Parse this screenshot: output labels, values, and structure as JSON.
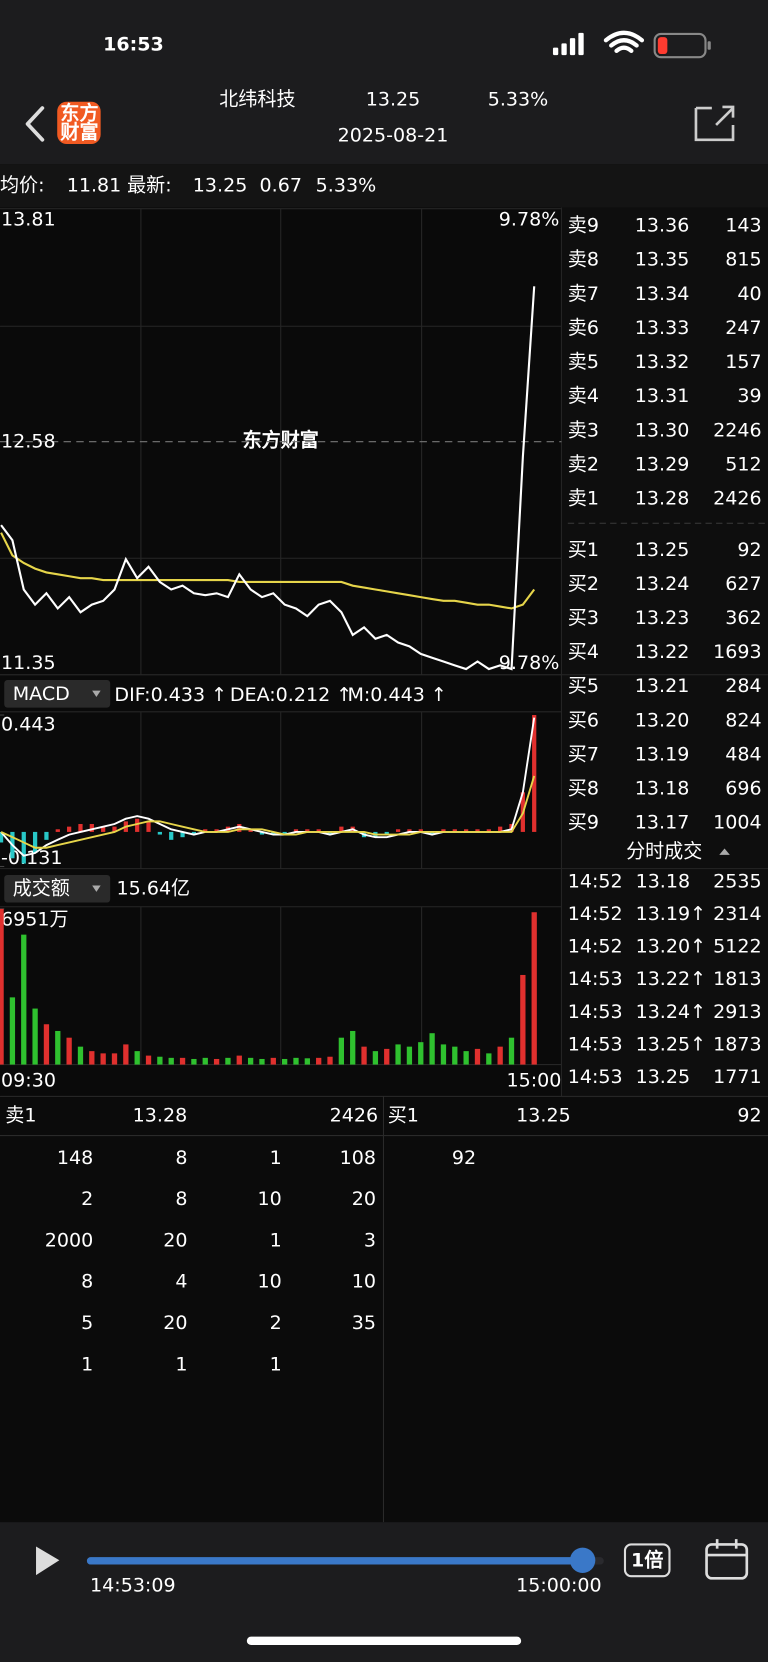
{
  "status_bar": {
    "time": "16:53"
  },
  "header": {
    "logo": [
      "东方",
      "财富"
    ],
    "title": "北纬科技",
    "price": "13.25",
    "change_pct": "5.33%",
    "date": "2025-08-21"
  },
  "quote_bar": {
    "avg_label": "均价:",
    "avg": "11.81",
    "latest_label": "最新:",
    "latest": "13.25",
    "change": "0.67",
    "change_pct": "5.33%"
  },
  "chart_data": [
    {
      "type": "line",
      "watermark": "东方财富",
      "ylim": [
        11.35,
        13.81
      ],
      "yticks": [
        11.35,
        12.58,
        13.81
      ],
      "pct_labels": [
        "9.78%",
        "9.78%"
      ],
      "series": [
        {
          "color": "#ffffff",
          "values": [
            12.14,
            12.06,
            11.8,
            11.72,
            11.78,
            11.7,
            11.76,
            11.68,
            11.72,
            11.74,
            11.8,
            11.96,
            11.86,
            11.92,
            11.84,
            11.8,
            11.82,
            11.78,
            11.77,
            11.78,
            11.76,
            11.88,
            11.8,
            11.76,
            11.78,
            11.72,
            11.7,
            11.66,
            11.72,
            11.74,
            11.68,
            11.56,
            11.6,
            11.54,
            11.56,
            11.52,
            11.5,
            11.46,
            11.44,
            11.42,
            11.4,
            11.38,
            11.42,
            11.38,
            11.4,
            11.38,
            12.5,
            13.4,
            null
          ]
        },
        {
          "color": "#e6d54a",
          "values": [
            12.1,
            11.98,
            11.94,
            11.91,
            11.89,
            11.88,
            11.87,
            11.86,
            11.86,
            11.85,
            11.85,
            11.85,
            11.85,
            11.85,
            11.85,
            11.85,
            11.85,
            11.85,
            11.85,
            11.85,
            11.85,
            11.84,
            11.84,
            11.84,
            11.84,
            11.84,
            11.84,
            11.84,
            11.84,
            11.84,
            11.84,
            11.82,
            11.81,
            11.8,
            11.79,
            11.78,
            11.77,
            11.76,
            11.75,
            11.74,
            11.74,
            11.73,
            11.72,
            11.72,
            11.71,
            11.7,
            11.72,
            11.8,
            null
          ]
        }
      ]
    },
    {
      "type": "macd",
      "indicator": "MACD",
      "ylim": [
        -0.131,
        0.443
      ],
      "yticks": [
        -0.131,
        0.443
      ],
      "up_color": "#e0302e",
      "down_color": "#28c8c8",
      "series": [
        {
          "name": "DIF:0.433 ↑",
          "color": "#ffffff",
          "values": [
            0.0,
            -0.05,
            -0.09,
            -0.08,
            -0.05,
            -0.03,
            -0.01,
            0.0,
            0.01,
            0.02,
            0.03,
            0.05,
            0.06,
            0.05,
            0.03,
            0.01,
            0.0,
            -0.01,
            0.0,
            0.0,
            0.01,
            0.02,
            0.01,
            0.0,
            -0.01,
            -0.01,
            0.0,
            0.0,
            0.0,
            -0.01,
            0.0,
            0.01,
            -0.01,
            -0.02,
            -0.02,
            -0.01,
            0.0,
            0.0,
            -0.01,
            0.0,
            0.0,
            0.0,
            0.0,
            0.0,
            0.0,
            0.01,
            0.15,
            0.433,
            null
          ]
        },
        {
          "name": "DEA:0.212 ↑",
          "color": "#e6d54a",
          "values": [
            0.0,
            -0.02,
            -0.04,
            -0.06,
            -0.06,
            -0.05,
            -0.04,
            -0.03,
            -0.02,
            -0.01,
            0.0,
            0.02,
            0.03,
            0.04,
            0.04,
            0.03,
            0.02,
            0.01,
            0.0,
            0.0,
            0.0,
            0.01,
            0.01,
            0.01,
            0.0,
            -0.01,
            -0.01,
            0.0,
            0.0,
            0.0,
            0.0,
            0.0,
            0.0,
            -0.01,
            -0.01,
            -0.01,
            -0.01,
            0.0,
            0.0,
            0.0,
            0.0,
            0.0,
            0.0,
            0.0,
            0.0,
            0.0,
            0.07,
            0.212,
            null
          ]
        },
        {
          "name": "M:0.443 ↑",
          "color": "#e040e0",
          "bars": true,
          "values": [
            -0.04,
            -0.1,
            -0.12,
            -0.08,
            -0.03,
            0.01,
            0.02,
            0.03,
            0.03,
            0.02,
            0.02,
            0.04,
            0.05,
            0.04,
            -0.01,
            -0.03,
            -0.02,
            -0.01,
            0.01,
            0.01,
            0.02,
            0.03,
            0.01,
            -0.01,
            -0.01,
            -0.01,
            0.01,
            0.01,
            0.01,
            -0.01,
            0.02,
            0.02,
            -0.02,
            -0.02,
            -0.01,
            0.01,
            0.01,
            0.01,
            -0.01,
            0.01,
            0.01,
            0.01,
            0.01,
            0.01,
            0.02,
            0.03,
            0.15,
            0.443,
            null
          ]
        }
      ]
    },
    {
      "type": "bar",
      "indicator": "成交额",
      "total": "15.64亿",
      "ylim": [
        0,
        6951
      ],
      "yticks": [
        {
          "value": 6951,
          "label": "6951万"
        }
      ],
      "x_labels": [
        "09:30",
        "15:00"
      ],
      "up_color": "#e0302e",
      "down_color": "#2fc12f",
      "values": [
        6951,
        3000,
        5800,
        2500,
        1800,
        1500,
        1200,
        800,
        600,
        500,
        500,
        900,
        600,
        400,
        350,
        300,
        300,
        250,
        300,
        250,
        300,
        400,
        300,
        250,
        300,
        250,
        300,
        280,
        300,
        350,
        1200,
        1500,
        800,
        600,
        700,
        900,
        800,
        1000,
        1400,
        900,
        800,
        600,
        700,
        500,
        800,
        1200,
        4000,
        6800,
        null
      ]
    }
  ],
  "order_book": {
    "asks": [
      {
        "label": "卖9",
        "price": "13.36",
        "volume": "143"
      },
      {
        "label": "卖8",
        "price": "13.35",
        "volume": "815"
      },
      {
        "label": "卖7",
        "price": "13.34",
        "volume": "40"
      },
      {
        "label": "卖6",
        "price": "13.33",
        "volume": "247"
      },
      {
        "label": "卖5",
        "price": "13.32",
        "volume": "157"
      },
      {
        "label": "卖4",
        "price": "13.31",
        "volume": "39"
      },
      {
        "label": "卖3",
        "price": "13.30",
        "volume": "2246"
      },
      {
        "label": "卖2",
        "price": "13.29",
        "volume": "512"
      },
      {
        "label": "卖1",
        "price": "13.28",
        "volume": "2426"
      }
    ],
    "bids": [
      {
        "label": "买1",
        "price": "13.25",
        "volume": "92"
      },
      {
        "label": "买2",
        "price": "13.24",
        "volume": "627"
      },
      {
        "label": "买3",
        "price": "13.23",
        "volume": "362"
      },
      {
        "label": "买4",
        "price": "13.22",
        "volume": "1693"
      },
      {
        "label": "买5",
        "price": "13.21",
        "volume": "284"
      },
      {
        "label": "买6",
        "price": "13.20",
        "volume": "824"
      },
      {
        "label": "买7",
        "price": "13.19",
        "volume": "484"
      },
      {
        "label": "买8",
        "price": "13.18",
        "volume": "696"
      },
      {
        "label": "买9",
        "price": "13.17",
        "volume": "1004"
      }
    ]
  },
  "trades": {
    "title": "分时成交",
    "rows": [
      {
        "time": "14:52",
        "price": "13.18",
        "volume": "2535",
        "color": "#e0302e"
      },
      {
        "time": "14:52",
        "price": "13.19↑",
        "volume": "2314",
        "color": "#e0302e"
      },
      {
        "time": "14:52",
        "price": "13.20↑",
        "volume": "5122",
        "color": "#e0302e"
      },
      {
        "time": "14:53",
        "price": "13.22↑",
        "volume": "1813",
        "color": "#e0302e"
      },
      {
        "time": "14:53",
        "price": "13.24↑",
        "volume": "2913",
        "color": "#e0302e"
      },
      {
        "time": "14:53",
        "price": "13.25↑",
        "volume": "1873",
        "color": "#e0302e"
      },
      {
        "time": "14:53",
        "price": "13.25",
        "volume": "1771",
        "color": "#2fc12f"
      }
    ]
  },
  "queue": {
    "ask_label": "卖1",
    "ask_price": "13.28",
    "ask_volume": "2426",
    "bid_label": "买1",
    "bid_price": "13.25",
    "bid_volume": "92",
    "ask_orders": [
      [
        148,
        8,
        1,
        108
      ],
      [
        2,
        8,
        10,
        20
      ],
      [
        2000,
        20,
        1,
        3
      ],
      [
        8,
        4,
        10,
        10
      ],
      [
        5,
        20,
        2,
        35
      ],
      [
        1,
        1,
        1
      ]
    ],
    "bid_orders": [
      92
    ]
  },
  "playback": {
    "current": "14:53:09",
    "end": "15:00:00",
    "speed": "1倍"
  }
}
